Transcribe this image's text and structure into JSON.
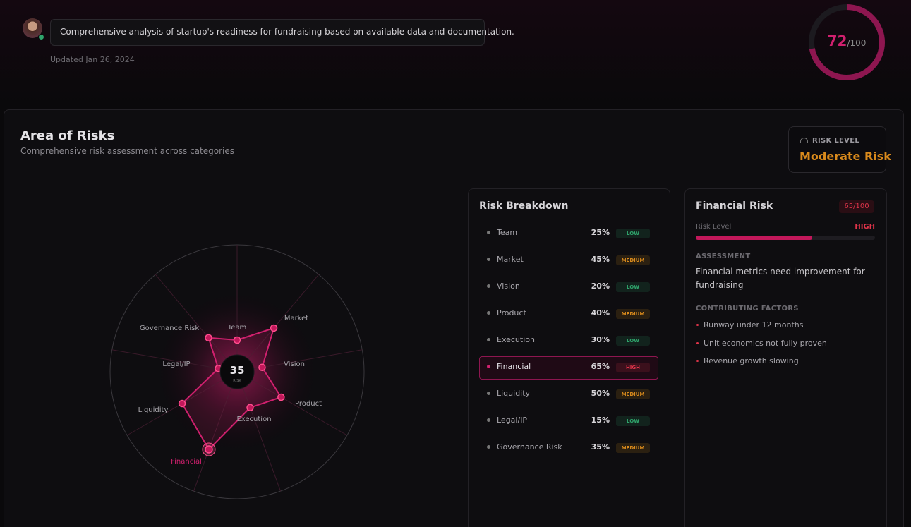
{
  "header": {
    "description": "Comprehensive analysis of startup's readiness for fundraising based on available data and documentation.",
    "updated": "Updated Jan 26, 2024",
    "score": {
      "value": 72,
      "max": 100,
      "max_label": "/100"
    }
  },
  "risks": {
    "title": "Area of Risks",
    "subtitle": "Comprehensive risk assessment across categories",
    "risk_level": {
      "label": "RISK LEVEL",
      "value": "Moderate Risk"
    },
    "radar": {
      "center_value": 35,
      "center_label": "RISK"
    },
    "breakdown": {
      "title": "Risk Breakdown",
      "selected": 5,
      "items": [
        {
          "name": "Team",
          "value": 25,
          "label": "25%",
          "level": "LOW",
          "color": "#2fa36b"
        },
        {
          "name": "Market",
          "value": 45,
          "label": "45%",
          "level": "MEDIUM",
          "color": "#d98a1c"
        },
        {
          "name": "Vision",
          "value": 20,
          "label": "20%",
          "level": "LOW",
          "color": "#2fa36b"
        },
        {
          "name": "Product",
          "value": 40,
          "label": "40%",
          "level": "MEDIUM",
          "color": "#d98a1c"
        },
        {
          "name": "Execution",
          "value": 30,
          "label": "30%",
          "level": "LOW",
          "color": "#2fa36b"
        },
        {
          "name": "Financial",
          "value": 65,
          "label": "65%",
          "level": "HIGH",
          "color": "#e0344a"
        },
        {
          "name": "Liquidity",
          "value": 50,
          "label": "50%",
          "level": "MEDIUM",
          "color": "#d98a1c"
        },
        {
          "name": "Legal/IP",
          "value": 15,
          "label": "15%",
          "level": "LOW",
          "color": "#2fa36b"
        },
        {
          "name": "Governance Risk",
          "value": 35,
          "label": "35%",
          "level": "MEDIUM",
          "color": "#d98a1c"
        }
      ]
    },
    "detail": {
      "title": "Financial Risk",
      "score": {
        "value": 65,
        "max": 100,
        "label": "65/100"
      },
      "level_label": "Risk Level",
      "level": "HIGH",
      "assessment_label": "ASSESSMENT",
      "assessment": "Financial metrics need improvement for fundraising",
      "factors_label": "CONTRIBUTING FACTORS",
      "factors": [
        "Runway under 12 months",
        "Unit economics not fully proven",
        "Revenue growth slowing"
      ]
    }
  }
}
